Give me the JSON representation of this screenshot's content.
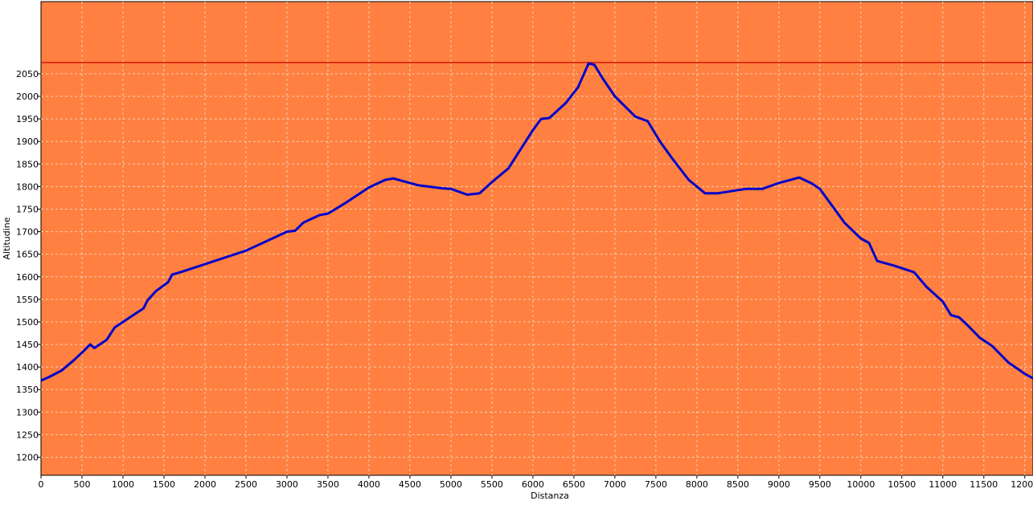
{
  "chart_data": {
    "type": "line",
    "title": "",
    "xlabel": "Distanza",
    "ylabel": "Altitudine",
    "xlim": [
      0,
      12100
    ],
    "ylim": [
      1160,
      2210
    ],
    "grid": true,
    "x_ticks": [
      0,
      500,
      1000,
      1500,
      2000,
      2500,
      3000,
      3500,
      4000,
      4500,
      5000,
      5500,
      6000,
      6500,
      7000,
      7500,
      8000,
      8500,
      9000,
      9500,
      10000,
      10500,
      11000,
      11500,
      12000
    ],
    "y_ticks": [
      1200,
      1250,
      1300,
      1350,
      1400,
      1450,
      1500,
      1550,
      1600,
      1650,
      1700,
      1750,
      1800,
      1850,
      1900,
      1950,
      2000,
      2050
    ],
    "reference_line": 2075,
    "colors": {
      "plot_background": "#ff8040",
      "line": "#0000cc",
      "reference_line": "#cc0000",
      "grid": "#f5d0b5"
    },
    "series": [
      {
        "x": [
          0,
          100,
          250,
          400,
          500,
          600,
          650,
          800,
          900,
          1000,
          1150,
          1250,
          1300,
          1400,
          1550,
          1600,
          1700,
          2000,
          2500,
          3000,
          3100,
          3200,
          3400,
          3500,
          3700,
          4000,
          4200,
          4300,
          4600,
          4900,
          5000,
          5200,
          5350,
          5500,
          5700,
          6000,
          6100,
          6200,
          6400,
          6550,
          6680,
          6750,
          6850,
          7000,
          7250,
          7400,
          7550,
          7700,
          7900,
          8100,
          8250,
          8600,
          8800,
          9000,
          9250,
          9400,
          9500,
          9800,
          10000,
          10100,
          10200,
          10400,
          10650,
          10800,
          11000,
          11100,
          11200,
          11300,
          11450,
          11600,
          11800,
          12000,
          12100
        ],
        "y": [
          1370,
          1378,
          1392,
          1415,
          1432,
          1450,
          1442,
          1460,
          1488,
          1500,
          1518,
          1530,
          1548,
          1568,
          1588,
          1605,
          1610,
          1628,
          1658,
          1700,
          1702,
          1720,
          1737,
          1740,
          1762,
          1798,
          1815,
          1818,
          1803,
          1796,
          1795,
          1782,
          1785,
          1810,
          1840,
          1925,
          1950,
          1952,
          1985,
          2020,
          2073,
          2070,
          2040,
          2000,
          1955,
          1945,
          1900,
          1862,
          1815,
          1785,
          1785,
          1795,
          1795,
          1808,
          1820,
          1807,
          1795,
          1720,
          1685,
          1675,
          1635,
          1625,
          1610,
          1578,
          1545,
          1515,
          1510,
          1493,
          1465,
          1447,
          1410,
          1385,
          1375
        ]
      }
    ]
  }
}
